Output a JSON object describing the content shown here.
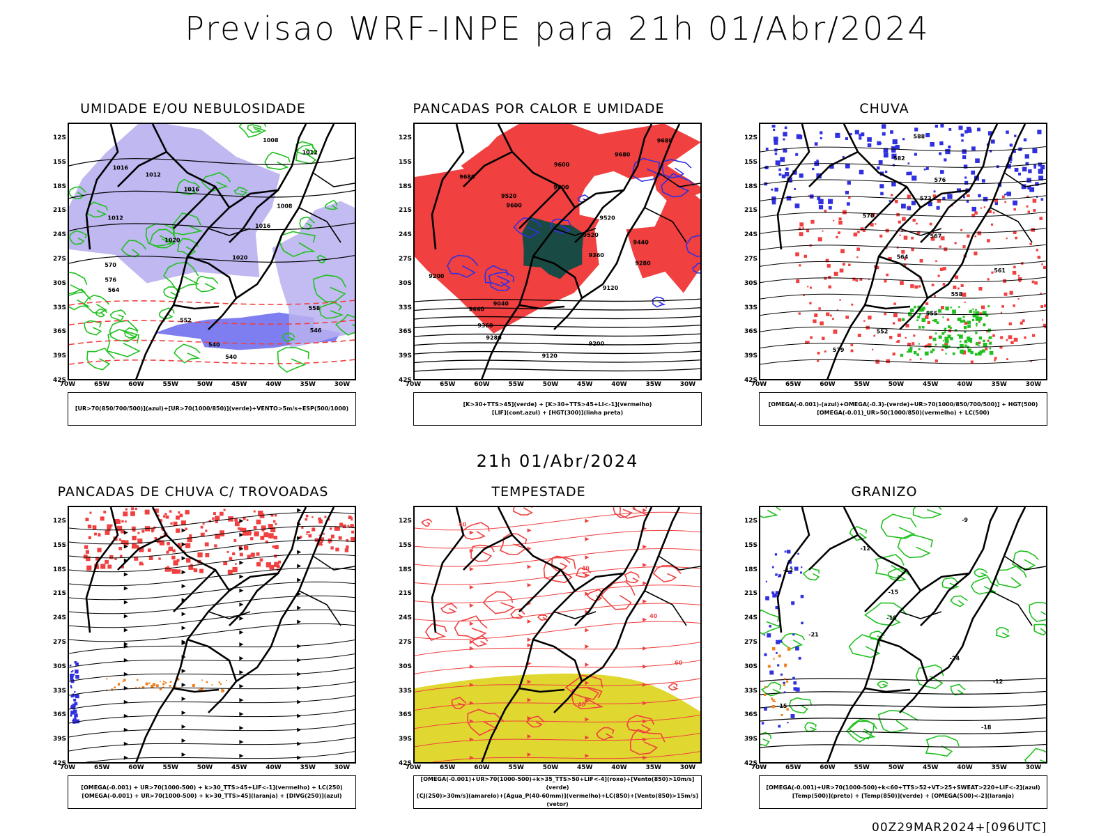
{
  "title": "Previsao WRF-INPE  para 21h 01/Abr/2024",
  "mid_title": "21h 01/Abr/2024",
  "footer": "00Z29MAR2024+[096UTC]",
  "lat_labels": [
    "12S",
    "15S",
    "18S",
    "21S",
    "24S",
    "27S",
    "30S",
    "33S",
    "36S",
    "39S",
    "42S"
  ],
  "lon_labels": [
    "70W",
    "65W",
    "60W",
    "55W",
    "50W",
    "45W",
    "40W",
    "35W",
    "30W"
  ],
  "colors": {
    "blue": "#3030e0",
    "green": "#20c020",
    "red": "#f04040",
    "lavender": "#b8b0f0",
    "purple": "#7070f0",
    "darkteal": "#1a4a44",
    "yellow": "#e0d830",
    "orange": "#f08020"
  },
  "panels": [
    {
      "id": "umidade",
      "title": "UMIDADE E/OU NEBULOSIDADE",
      "legend": [
        "[UR>70(850/700/500)](azul)+[UR>70(1000/850)](verde)+VENTO>5m/s+ESP(500/1000)"
      ],
      "contour_labels": [
        "1008",
        "1012",
        "1016",
        "1012",
        "1016",
        "1008",
        "1012",
        "1016",
        "1020",
        "1020",
        "570",
        "576",
        "564",
        "558",
        "552",
        "546",
        "540",
        "540"
      ]
    },
    {
      "id": "pancadas-calor",
      "title": "PANCADAS POR CALOR E UMIDADE",
      "legend": [
        "[K>30+TTS>45](verde) + [K>30+TTS>45+LI<-1](vermelho)",
        "[LIF](cont.azul) + [HGT(300)](linha preta)"
      ],
      "contour_labels": [
        "9680",
        "9680",
        "9600",
        "9680",
        "9600",
        "9520",
        "9600",
        "9520",
        "9520",
        "9440",
        "9360",
        "9280",
        "9200",
        "9120",
        "9040",
        "9440",
        "9360",
        "9280",
        "9200",
        "9120"
      ]
    },
    {
      "id": "chuva",
      "title": "CHUVA",
      "legend": [
        "[OMEGA(-0.001)-(azul)+OMEGA(-0.3)-(verde)+UR>70(1000/850/700/500)] + HGT(500)",
        "[OMEGA(-0.01)_UR>50(1000/850)(vermelho) + LC(500)"
      ],
      "contour_labels": [
        "588",
        "582",
        "576",
        "573",
        "570",
        "567",
        "564",
        "561",
        "558",
        "555",
        "552",
        "579"
      ]
    },
    {
      "id": "pancadas-trovoadas",
      "title": "PANCADAS DE CHUVA C/ TROVOADAS",
      "legend": [
        "[OMEGA(-0.001) + UR>70(1000-500) + k>30_TTS>45+LIF<-1](vermelho) + LC(250)",
        "[OMEGA(-0.001) + UR>70(1000-500) + k>30_TTS>45](laranja) + [DIVG(250)](azul)"
      ],
      "contour_labels": []
    },
    {
      "id": "tempestade",
      "title": "TEMPESTADE",
      "legend": [
        "[OMEGA(-0.001)+UR>70(1000-500)+k>35_TTS>50+LIF<-4](roxo)+[Vento(850)>10m/s](verde)",
        "[CJ(250)>30m/s](amarelo)+[Agua_P(40-60mm)](vermelho)+LC(850)+[Vento(850)>15m/s](vetor)"
      ],
      "contour_labels": [
        "40",
        "40",
        "40",
        "60",
        "40"
      ]
    },
    {
      "id": "granizo",
      "title": "GRANIZO",
      "legend": [
        "[OMEGA(-0.001)+UR>70(1000-500)+k<60+TTS>52+VT>25+SWEAT>220+LIF<-2](azul)",
        "[Temp(500)](preto) + [Temp(850)](verde) + [OMEGA(500)<-2](laranja)"
      ],
      "contour_labels": [
        "-9",
        "-12",
        "-12",
        "-15",
        "-18",
        "-21",
        "-24",
        "-12",
        "-15",
        "-18"
      ]
    }
  ]
}
